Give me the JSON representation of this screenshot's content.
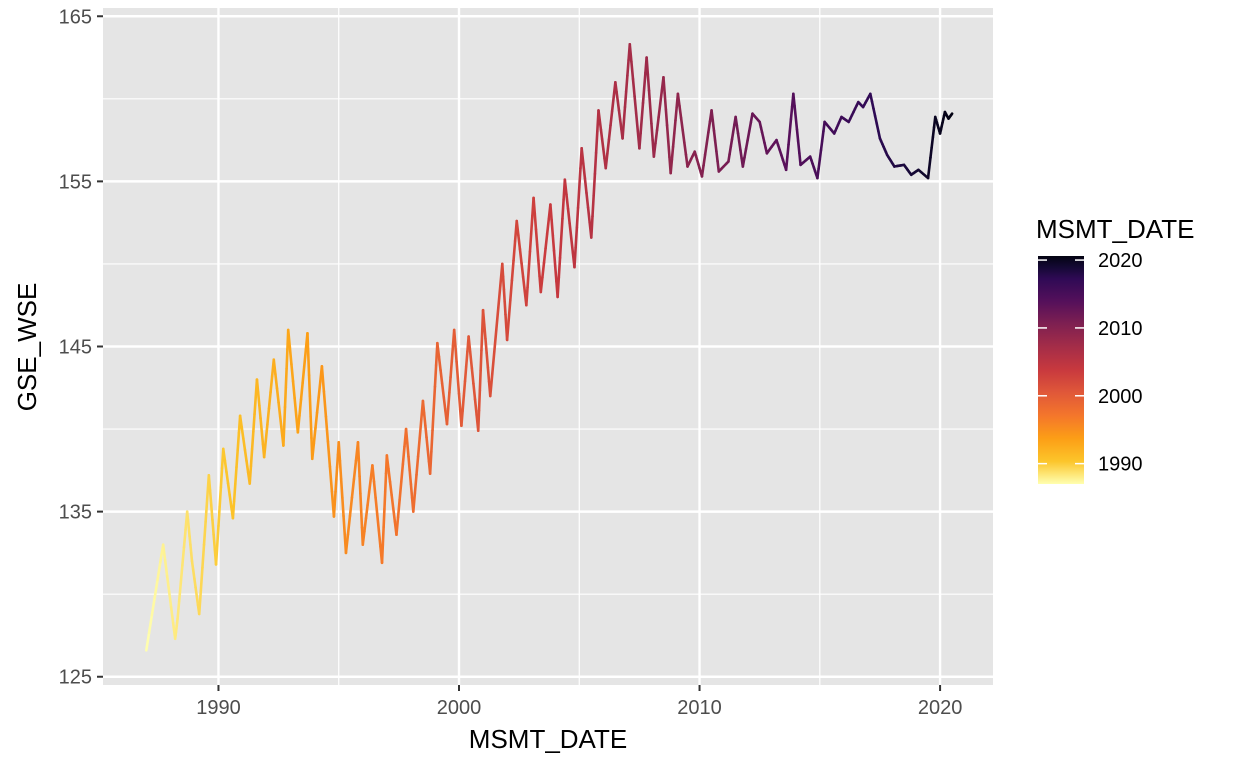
{
  "chart_data": {
    "type": "line",
    "title": "",
    "xlabel": "MSMT_DATE",
    "ylabel": "GSE_WSE",
    "xlim": [
      1985.2,
      2022.2
    ],
    "ylim": [
      124.5,
      165.5
    ],
    "x_ticks": [
      1990,
      2000,
      2010,
      2020
    ],
    "x_tick_labels": [
      "1990",
      "2000",
      "2010",
      "2020"
    ],
    "y_ticks": [
      125,
      135,
      145,
      155,
      165
    ],
    "y_tick_labels": [
      "125",
      "135",
      "145",
      "155",
      "165"
    ],
    "grid": true,
    "panel_background": "#e5e5e5",
    "grid_color": "#ffffff",
    "legend": {
      "title": "MSMT_DATE",
      "placement": "right",
      "labels": [
        "2020",
        "2010",
        "2000",
        "1990"
      ],
      "label_values": [
        2020,
        2010,
        2000,
        1990
      ],
      "range": [
        1987.0,
        2020.6
      ],
      "colormap": "inferno (reversed)",
      "colors": [
        "#ffffb0",
        "#fcc52a",
        "#fc9e16",
        "#f4762b",
        "#e05839",
        "#c8393e",
        "#a52d48",
        "#7f2051",
        "#55105b",
        "#2f0a55",
        "#150935",
        "#030312"
      ],
      "color_stops": [
        0.0,
        0.1,
        0.2,
        0.3,
        0.4,
        0.5,
        0.6,
        0.7,
        0.8,
        0.9,
        0.95,
        1.0
      ]
    },
    "series": [
      {
        "x": [
          1987.0,
          1987.7,
          1988.2,
          1988.3,
          1988.7,
          1988.9,
          1989.2,
          1989.6,
          1989.9,
          1990.2,
          1990.6,
          1990.9,
          1991.3,
          1991.6,
          1991.9,
          1992.3,
          1992.7,
          1992.9,
          1993.3,
          1993.7,
          1993.9,
          1994.3,
          1994.8,
          1995.0,
          1995.3,
          1995.8,
          1996.0,
          1996.4,
          1996.8,
          1997.0,
          1997.4,
          1997.8,
          1998.1,
          1998.5,
          1998.8,
          1999.1,
          1999.5,
          1999.8,
          2000.1,
          2000.4,
          2000.8,
          2001.0,
          2001.3,
          2001.8,
          2002.0,
          2002.4,
          2002.8,
          2003.1,
          2003.4,
          2003.8,
          2004.1,
          2004.4,
          2004.8,
          2005.1,
          2005.5,
          2005.8,
          2006.1,
          2006.5,
          2006.8,
          2007.1,
          2007.5,
          2007.8,
          2008.1,
          2008.5,
          2008.8,
          2009.1,
          2009.5,
          2009.8,
          2010.1,
          2010.5,
          2010.8,
          2011.2,
          2011.5,
          2011.8,
          2012.2,
          2012.5,
          2012.8,
          2013.2,
          2013.6,
          2013.9,
          2014.2,
          2014.6,
          2014.9,
          2015.2,
          2015.6,
          2015.9,
          2016.2,
          2016.6,
          2016.8,
          2017.1,
          2017.5,
          2017.8,
          2018.1,
          2018.5,
          2018.8,
          2019.1,
          2019.5,
          2019.8,
          2020.0,
          2020.2,
          2020.35,
          2020.5
        ],
        "values": [
          126.6,
          133.0,
          127.3,
          128.5,
          135.0,
          132.0,
          128.8,
          137.2,
          131.8,
          138.8,
          134.6,
          140.8,
          136.7,
          143.0,
          138.3,
          144.2,
          139.0,
          146.0,
          139.8,
          145.8,
          138.2,
          143.8,
          134.7,
          139.2,
          132.5,
          139.2,
          133.0,
          137.8,
          131.9,
          138.4,
          133.6,
          140.0,
          135.0,
          141.7,
          137.3,
          145.2,
          140.3,
          146.0,
          140.2,
          145.6,
          139.9,
          147.2,
          142.0,
          150.0,
          145.4,
          152.6,
          147.5,
          154.0,
          148.3,
          153.6,
          148.0,
          155.1,
          149.8,
          157.0,
          151.6,
          159.3,
          155.8,
          161.0,
          157.6,
          163.3,
          157.0,
          162.5,
          156.5,
          161.3,
          155.5,
          160.3,
          155.9,
          156.8,
          155.3,
          159.3,
          155.6,
          156.2,
          158.9,
          155.9,
          159.1,
          158.6,
          156.7,
          157.5,
          155.7,
          160.3,
          156.0,
          156.5,
          155.2,
          158.6,
          157.9,
          158.9,
          158.6,
          159.8,
          159.5,
          160.3,
          157.6,
          156.6,
          155.9,
          156.0,
          155.4,
          155.7,
          155.2,
          158.9,
          157.9,
          159.2,
          158.8,
          159.1
        ]
      }
    ]
  }
}
